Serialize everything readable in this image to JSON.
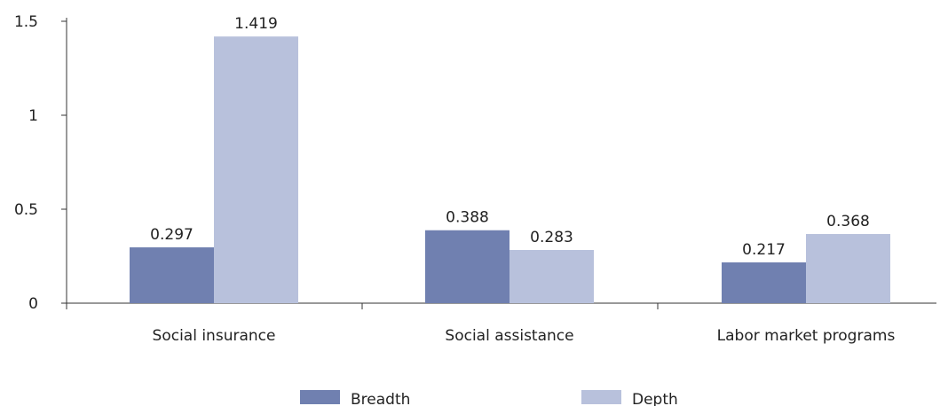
{
  "chart_data": {
    "type": "bar",
    "title": "",
    "xlabel": "",
    "ylabel": "",
    "categories": [
      "Social insurance",
      "Social assistance",
      "Labor market programs"
    ],
    "series": [
      {
        "name": "Breadth",
        "values": [
          0.297,
          0.388,
          0.217
        ],
        "value_labels": [
          "0.297",
          "0.388",
          "0.217"
        ],
        "color": "#7080b0"
      },
      {
        "name": "Depth",
        "values": [
          1.419,
          0.283,
          0.368
        ],
        "value_labels": [
          "1.419",
          "0.283",
          "0.368"
        ],
        "color": "#b8c1dc"
      }
    ],
    "ylim": [
      0,
      1.5
    ],
    "yticks": [
      0,
      0.5,
      1,
      1.5
    ],
    "ytick_labels": [
      "0",
      "0.5",
      "1",
      "1.5"
    ],
    "grid": false,
    "legend_position": "bottom"
  }
}
